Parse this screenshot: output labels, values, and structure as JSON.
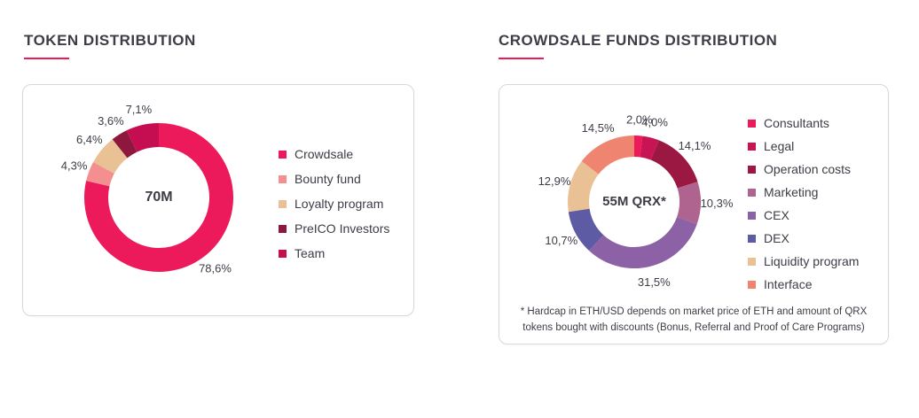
{
  "colors": {
    "accent": "#ED1B59",
    "title_text": "#3E3C46",
    "card_border": "#D8D8D8"
  },
  "chart_data": [
    {
      "type": "pie",
      "variant": "donut",
      "title": "TOKEN DISTRIBUTION",
      "center_label": "70M",
      "legend_position": "right",
      "start_angle_deg": 0,
      "direction": "clockwise",
      "series": [
        {
          "name": "Crowdsale",
          "value": 78.6,
          "label": "78,6%",
          "color": "#ED1A5B"
        },
        {
          "name": "Bounty fund",
          "value": 4.3,
          "label": "4,3%",
          "color": "#F3908F"
        },
        {
          "name": "Loyalty program",
          "value": 6.4,
          "label": "6,4%",
          "color": "#EAC195"
        },
        {
          "name": "PreICO Investors",
          "value": 3.6,
          "label": "3,6%",
          "color": "#8E173E"
        },
        {
          "name": "Team",
          "value": 7.1,
          "label": "7,1%",
          "color": "#C50D52"
        }
      ]
    },
    {
      "type": "pie",
      "variant": "donut",
      "title": "CROWDSALE FUNDS DISTRIBUTION",
      "center_label": "55M QRX*",
      "legend_position": "right",
      "start_angle_deg": 0,
      "direction": "clockwise",
      "footnote": "* Hardcap in ETH/USD depends on market price of ETH and amount of QRX tokens bought with discounts (Bonus, Referral and Proof of Care Programs)",
      "series": [
        {
          "name": "Consultants",
          "value": 2.0,
          "label": "2,0%",
          "color": "#ED1A5B"
        },
        {
          "name": "Legal",
          "value": 4.0,
          "label": "4,0%",
          "color": "#C81455"
        },
        {
          "name": "Operation costs",
          "value": 14.1,
          "label": "14,1%",
          "color": "#9B1843"
        },
        {
          "name": "Marketing",
          "value": 10.3,
          "label": "10,3%",
          "color": "#AF6490"
        },
        {
          "name": "CEX",
          "value": 31.5,
          "label": "31,5%",
          "color": "#8C61A5"
        },
        {
          "name": "DEX",
          "value": 10.7,
          "label": "10,7%",
          "color": "#5D5BA4"
        },
        {
          "name": "Liquidity program",
          "value": 12.9,
          "label": "12,9%",
          "color": "#EAC195"
        },
        {
          "name": "Interface",
          "value": 14.5,
          "label": "14,5%",
          "color": "#EF8570"
        }
      ]
    }
  ]
}
